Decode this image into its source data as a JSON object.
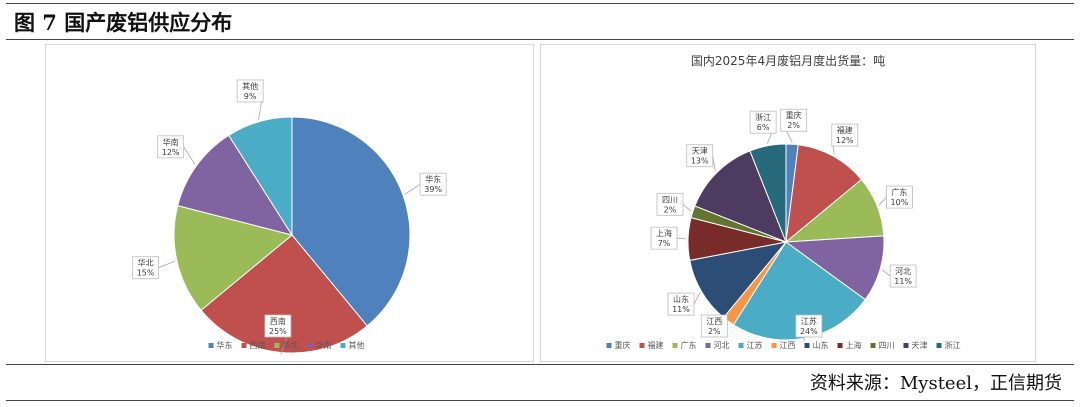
{
  "figure": {
    "title": "图 7  国产废铝供应分布",
    "source": "资料来源：Mysteel，正信期货"
  },
  "chart_data": [
    {
      "type": "pie",
      "title": "",
      "categories": [
        "华东",
        "西南",
        "华北",
        "华南",
        "其他"
      ],
      "values": [
        39,
        25,
        15,
        12,
        9
      ],
      "labels": [
        "39%",
        "25%",
        "15%",
        "12%",
        "9%"
      ],
      "colors": [
        "#4F81BD",
        "#C0504D",
        "#9BBB59",
        "#8064A2",
        "#4BACC6"
      ],
      "legend_position": "bottom"
    },
    {
      "type": "pie",
      "title": "国内2025年4月废铝月度出货量：吨",
      "categories": [
        "重庆",
        "福建",
        "广东",
        "河北",
        "江苏",
        "江西",
        "山东",
        "上海",
        "四川",
        "天津",
        "浙江"
      ],
      "values": [
        2,
        12,
        10,
        11,
        24,
        2,
        11,
        7,
        2,
        13,
        6
      ],
      "labels": [
        "2%",
        "12%",
        "10%",
        "11%",
        "24%",
        "2%",
        "11%",
        "7%",
        "2%",
        "13%",
        "6%"
      ],
      "colors": [
        "#4F81BD",
        "#C0504D",
        "#9BBB59",
        "#8064A2",
        "#4BACC6",
        "#F79646",
        "#2C4D75",
        "#772C2A",
        "#5F7530",
        "#4D3B62",
        "#276A7C"
      ],
      "legend_position": "bottom"
    }
  ]
}
